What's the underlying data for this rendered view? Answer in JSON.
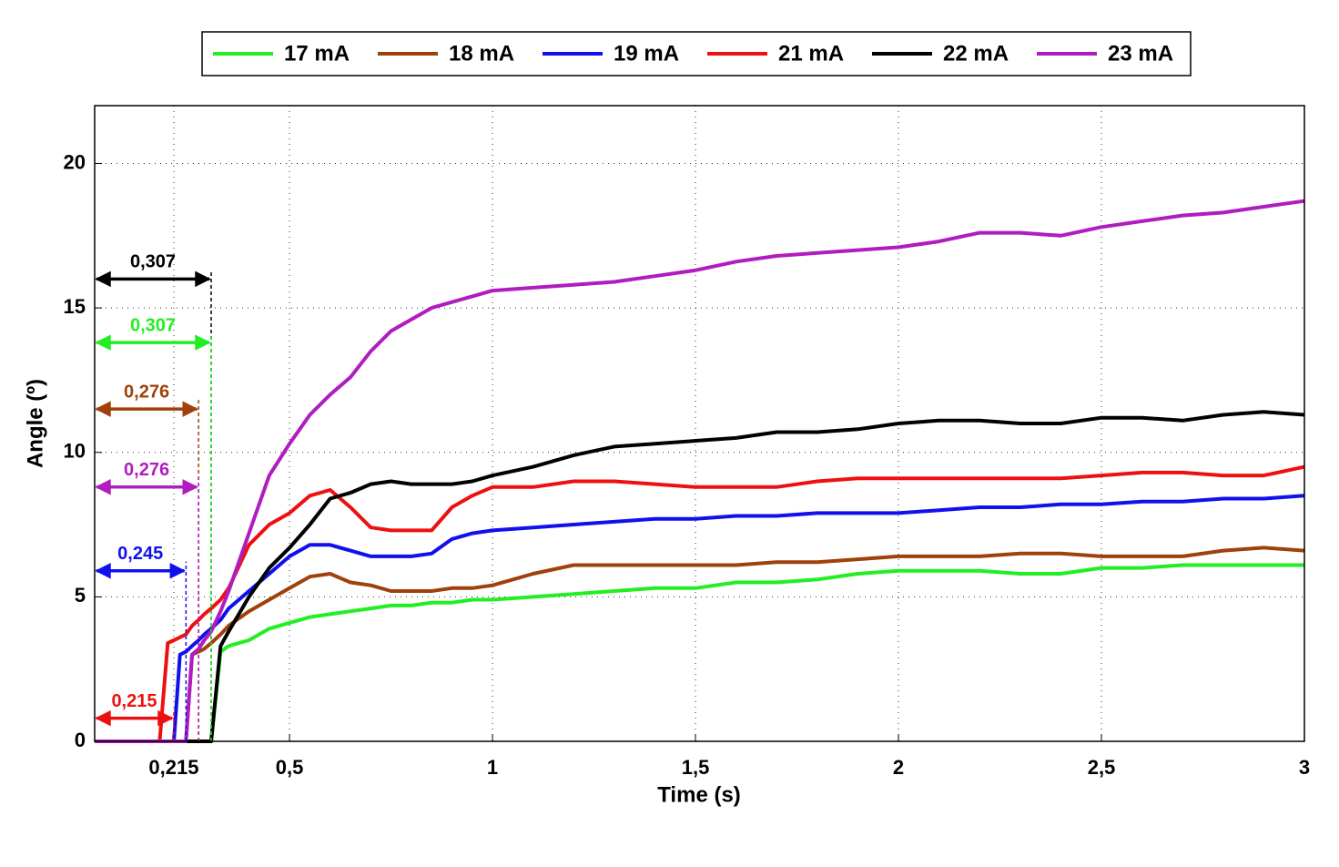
{
  "chart_data": {
    "type": "line",
    "xlabel": "Time (s)",
    "ylabel": "Angle (º)",
    "xlim": [
      0.02,
      3
    ],
    "ylim": [
      0,
      22
    ],
    "xticks": [
      {
        "value": 0.215,
        "label": "0,215"
      },
      {
        "value": 0.5,
        "label": "0,5"
      },
      1,
      {
        "value": 1.5,
        "label": "1,5"
      },
      2,
      {
        "value": 2.5,
        "label": "2,5"
      },
      3
    ],
    "yticks": [
      0,
      5,
      10,
      15,
      20
    ],
    "grid": true,
    "legend": "top",
    "x": [
      0.02,
      0.18,
      0.2,
      0.215,
      0.23,
      0.245,
      0.26,
      0.276,
      0.29,
      0.307,
      0.33,
      0.35,
      0.4,
      0.45,
      0.5,
      0.55,
      0.6,
      0.65,
      0.7,
      0.75,
      0.8,
      0.85,
      0.9,
      0.95,
      1.0,
      1.1,
      1.2,
      1.3,
      1.4,
      1.5,
      1.6,
      1.7,
      1.8,
      1.9,
      2.0,
      2.1,
      2.2,
      2.3,
      2.4,
      2.5,
      2.6,
      2.7,
      2.8,
      2.9,
      3.0
    ],
    "series": [
      {
        "name": "17 mA",
        "color": "#22ee22",
        "values": [
          0,
          0,
          0,
          0,
          0,
          0,
          0,
          0,
          0,
          0,
          3.1,
          3.3,
          3.5,
          3.9,
          4.1,
          4.3,
          4.4,
          4.5,
          4.6,
          4.7,
          4.7,
          4.8,
          4.8,
          4.9,
          4.9,
          5.0,
          5.1,
          5.2,
          5.3,
          5.3,
          5.5,
          5.5,
          5.6,
          5.8,
          5.9,
          5.9,
          5.9,
          5.8,
          5.8,
          6.0,
          6.0,
          6.1,
          6.1,
          6.1,
          6.1
        ]
      },
      {
        "name": "18 mA",
        "color": "#a0400a",
        "values": [
          0,
          0,
          0,
          0,
          0,
          0,
          3.0,
          3.1,
          3.2,
          3.4,
          3.7,
          4.0,
          4.5,
          4.9,
          5.3,
          5.7,
          5.8,
          5.5,
          5.4,
          5.2,
          5.2,
          5.2,
          5.3,
          5.3,
          5.4,
          5.8,
          6.1,
          6.1,
          6.1,
          6.1,
          6.1,
          6.2,
          6.2,
          6.3,
          6.4,
          6.4,
          6.4,
          6.5,
          6.5,
          6.4,
          6.4,
          6.4,
          6.6,
          6.7,
          6.6
        ]
      },
      {
        "name": "19 mA",
        "color": "#1010ee",
        "values": [
          0,
          0,
          0,
          0,
          3.0,
          3.1,
          3.3,
          3.5,
          3.7,
          3.9,
          4.2,
          4.6,
          5.2,
          5.8,
          6.4,
          6.8,
          6.8,
          6.6,
          6.4,
          6.4,
          6.4,
          6.5,
          7.0,
          7.2,
          7.3,
          7.4,
          7.5,
          7.6,
          7.7,
          7.7,
          7.8,
          7.8,
          7.9,
          7.9,
          7.9,
          8.0,
          8.1,
          8.1,
          8.2,
          8.2,
          8.3,
          8.3,
          8.4,
          8.4,
          8.5
        ]
      },
      {
        "name": "21 mA",
        "color": "#ee1010",
        "values": [
          0,
          0,
          3.4,
          3.5,
          3.6,
          3.7,
          4.0,
          4.2,
          4.4,
          4.6,
          4.9,
          5.3,
          6.8,
          7.5,
          7.9,
          8.5,
          8.7,
          8.1,
          7.4,
          7.3,
          7.3,
          7.3,
          8.1,
          8.5,
          8.8,
          8.8,
          9.0,
          9.0,
          8.9,
          8.8,
          8.8,
          8.8,
          9.0,
          9.1,
          9.1,
          9.1,
          9.1,
          9.1,
          9.1,
          9.2,
          9.3,
          9.3,
          9.2,
          9.2,
          9.5
        ]
      },
      {
        "name": "22 mA",
        "color": "#000000",
        "values": [
          0,
          0,
          0,
          0,
          0,
          0,
          0,
          0,
          0,
          0,
          3.3,
          3.8,
          5.0,
          6.0,
          6.7,
          7.5,
          8.4,
          8.6,
          8.9,
          9.0,
          8.9,
          8.9,
          8.9,
          9.0,
          9.2,
          9.5,
          9.9,
          10.2,
          10.3,
          10.4,
          10.5,
          10.7,
          10.7,
          10.8,
          11.0,
          11.1,
          11.1,
          11.0,
          11.0,
          11.2,
          11.2,
          11.1,
          11.3,
          11.4,
          11.3
        ]
      },
      {
        "name": "23 mA",
        "color": "#b01cc0",
        "values": [
          0,
          0,
          0,
          0,
          0,
          0,
          3.0,
          3.2,
          3.5,
          3.8,
          4.5,
          5.2,
          7.2,
          9.2,
          10.3,
          11.3,
          12.0,
          12.6,
          13.5,
          14.2,
          14.6,
          15.0,
          15.2,
          15.4,
          15.6,
          15.7,
          15.8,
          15.9,
          16.1,
          16.3,
          16.6,
          16.8,
          16.9,
          17.0,
          17.1,
          17.3,
          17.6,
          17.6,
          17.5,
          17.8,
          18.0,
          18.2,
          18.3,
          18.5,
          18.7
        ]
      }
    ],
    "annotations": [
      {
        "text": "0,307",
        "x": 0.307,
        "y": 16,
        "color": "#000000"
      },
      {
        "text": "0,307",
        "x": 0.307,
        "y": 13.8,
        "color": "#22ee22"
      },
      {
        "text": "0,276",
        "x": 0.276,
        "y": 11.5,
        "color": "#a0400a"
      },
      {
        "text": "0,276",
        "x": 0.276,
        "y": 8.8,
        "color": "#b01cc0"
      },
      {
        "text": "0,245",
        "x": 0.245,
        "y": 5.9,
        "color": "#1010ee"
      },
      {
        "text": "0,215",
        "x": 0.215,
        "y": 0.8,
        "color": "#ee1010"
      }
    ]
  }
}
